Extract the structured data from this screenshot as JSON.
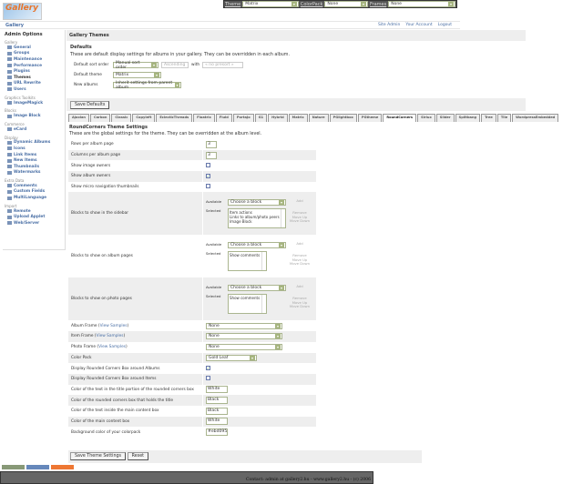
{
  "topbar": {
    "theme_label": "Theme",
    "theme_value": "Matrix",
    "colorpack_label": "ColorPack",
    "colorpack_value": "None",
    "frames_label": "Frames",
    "frames_value": "None"
  },
  "logo_text": "Gallery",
  "breadcrumb": "Gallery",
  "toplinks": [
    "Site Admin",
    "Your Account",
    "Logout"
  ],
  "sidebar": {
    "title": "Admin Options",
    "groups": [
      {
        "label": "Gallery",
        "items": [
          "General",
          "Groups",
          "Maintenance",
          "Performance",
          "Plugins",
          "Themes",
          "URL Rewrite",
          "Users"
        ]
      },
      {
        "label": "Graphics Toolkits",
        "items": [
          "ImageMagick"
        ]
      },
      {
        "label": "Blocks",
        "items": [
          "Image Block"
        ]
      },
      {
        "label": "Commerce",
        "items": [
          "eCard"
        ]
      },
      {
        "label": "Display",
        "items": [
          "Dynamic Albums",
          "Icons",
          "Link Items",
          "New Items",
          "Thumbnails",
          "Watermarks"
        ]
      },
      {
        "label": "Extra Data",
        "items": [
          "Comments",
          "Custom Fields",
          "MultiLanguage"
        ]
      },
      {
        "label": "Import",
        "items": [
          "Remote",
          "Upload Applet",
          "Web/Server"
        ]
      }
    ],
    "current": "Themes"
  },
  "main": {
    "title": "Gallery Themes",
    "defaults_heading": "Defaults",
    "defaults_desc": "These are default display settings for albums in your gallery. They can be overridden in each album.",
    "sort_label": "Default sort order",
    "sort_value": "Manual sort order",
    "sort_dir": "Ascending",
    "with_label": "with",
    "presort": "« no presort »",
    "theme_label": "Default theme",
    "theme_value": "Matrix",
    "new_albums_label": "New albums",
    "new_albums_value": "Inherit settings from parent album",
    "save_defaults": "Save Defaults"
  },
  "tabs": [
    "Ajaxian",
    "Carbon",
    "Classic",
    "Copyleft",
    "EclecticThreads",
    "Floatrix",
    "Fluid",
    "PortaJo",
    "G1",
    "Hybrid",
    "Matrix",
    "Nature",
    "PGlightbox",
    "PGtheme",
    "RoundCorners",
    "Siriux",
    "Slider",
    "Splitbang",
    "Tree",
    "Tile",
    "WordpressEmbedded"
  ],
  "active_tab": "RoundCorners",
  "settings": {
    "title": "RoundCorners Theme Settings",
    "desc": "These are the global settings for the theme. They can be overridden at the album level.",
    "rows_label": "Rows per album page",
    "rows_value": "3",
    "cols_label": "Columns per album page",
    "cols_value": "3",
    "show_image_owners": {
      "label": "Show image owners",
      "checked": false
    },
    "show_album_owners": {
      "label": "Show album owners",
      "checked": true
    },
    "micro_nav": {
      "label": "Show micro navigation thumbnails",
      "checked": false
    },
    "available_label": "Available",
    "selected_label": "Selected",
    "choose": "Choose a block",
    "add": "Add",
    "remove": "Remove",
    "move_up": "Move Up",
    "move_down": "Move Down",
    "blocks": [
      {
        "label": "Blocks to show in the sidebar",
        "selected": [
          "Item actions",
          "Links to album/photo peers",
          "Image Block"
        ]
      },
      {
        "label": "Blocks to show on album pages",
        "selected": [
          "Show comments"
        ]
      },
      {
        "label": "Blocks to show on photo pages",
        "selected": [
          "Show comments"
        ]
      }
    ],
    "view_samples": "View Samples",
    "album_frame": {
      "label": "Album Frame",
      "value": "None"
    },
    "item_frame": {
      "label": "Item Frame",
      "value": "None"
    },
    "photo_frame": {
      "label": "Photo Frame",
      "value": "None"
    },
    "color_pack": {
      "label": "Color Pack",
      "value": "Gold Leaf"
    },
    "rc_albums": {
      "label": "Display Rounded Corners Box around Albums",
      "checked": true
    },
    "rc_items": {
      "label": "Display Rounded Corners Box around Items",
      "checked": false
    },
    "title_text_color": {
      "label": "Color of the text in the title portion of the rounded corners box",
      "value": "White"
    },
    "title_box_color": {
      "label": "Color of the rounded corners box that holds the title",
      "value": "Black"
    },
    "content_text_color": {
      "label": "Color of the text inside the main content box",
      "value": "Black"
    },
    "content_box_color": {
      "label": "Color of the main content box",
      "value": "White"
    },
    "bg_color": {
      "label": "Background color of your colorpack",
      "value": "#ebd095"
    },
    "save": "Save Theme Settings",
    "reset": "Reset"
  },
  "footer": "Contact: admin at gallery2.hu - www.gallery2.hu - (c) 2006"
}
